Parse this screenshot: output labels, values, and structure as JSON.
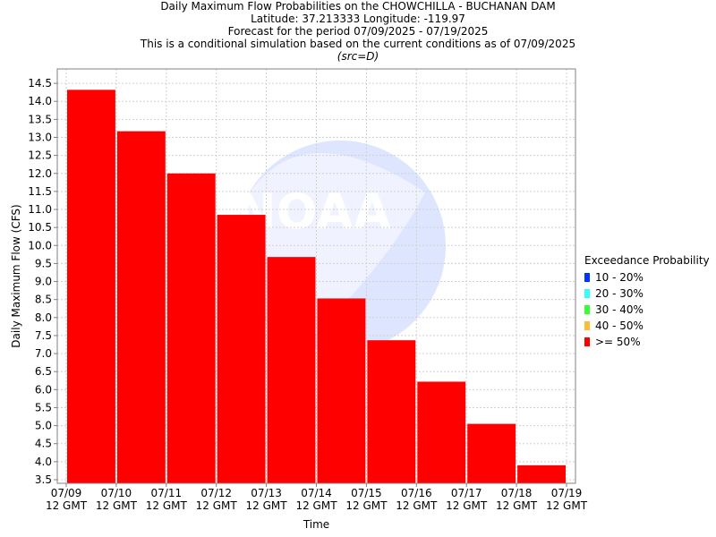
{
  "title_lines": [
    "Daily Maximum Flow Probabilities on the CHOWCHILLA - BUCHANAN DAM",
    "Latitude: 37.213333 Longitude: -119.97",
    "Forecast for the period 07/09/2025 - 07/19/2025",
    "This is a conditional simulation based on the current conditions as of 07/09/2025",
    "(src=D)"
  ],
  "watermark": "NOAA",
  "chart_data": {
    "type": "bar",
    "xlabel": "Time",
    "ylabel": "Daily Maximum Flow (CFS)",
    "ylim": [
      3.4,
      14.9
    ],
    "yticks": [
      3.5,
      4.0,
      4.5,
      5.0,
      5.5,
      6.0,
      6.5,
      7.0,
      7.5,
      8.0,
      8.5,
      9.0,
      9.5,
      10.0,
      10.5,
      11.0,
      11.5,
      12.0,
      12.5,
      13.0,
      13.5,
      14.0,
      14.5
    ],
    "ytick_labels": [
      "3.5",
      "4.0",
      "4.5",
      "5.0",
      "5.5",
      "6.0",
      "6.5",
      "7.0",
      "7.5",
      "8.0",
      "8.5",
      "9.0",
      "9.5",
      "10.0",
      "10.5",
      "11.0",
      "11.5",
      "12.0",
      "12.5",
      "13.0",
      "13.5",
      "14.0",
      "14.5"
    ],
    "x_ticks": [
      {
        "date": "07/09",
        "time": "12 GMT"
      },
      {
        "date": "07/10",
        "time": "12 GMT"
      },
      {
        "date": "07/11",
        "time": "12 GMT"
      },
      {
        "date": "07/12",
        "time": "12 GMT"
      },
      {
        "date": "07/13",
        "time": "12 GMT"
      },
      {
        "date": "07/14",
        "time": "12 GMT"
      },
      {
        "date": "07/15",
        "time": "12 GMT"
      },
      {
        "date": "07/16",
        "time": "12 GMT"
      },
      {
        "date": "07/17",
        "time": "12 GMT"
      },
      {
        "date": "07/18",
        "time": "12 GMT"
      },
      {
        "date": "07/19",
        "time": "12 GMT"
      }
    ],
    "series": [
      {
        "name": ">= 50%",
        "color": "#ff0000",
        "bars": [
          {
            "start": "07/09",
            "end": "07/10",
            "value": 14.32
          },
          {
            "start": "07/10",
            "end": "07/11",
            "value": 13.17
          },
          {
            "start": "07/11",
            "end": "07/12",
            "value": 12.0
          },
          {
            "start": "07/12",
            "end": "07/13",
            "value": 10.85
          },
          {
            "start": "07/13",
            "end": "07/14",
            "value": 9.68
          },
          {
            "start": "07/14",
            "end": "07/15",
            "value": 8.53
          },
          {
            "start": "07/15",
            "end": "07/16",
            "value": 7.37
          },
          {
            "start": "07/16",
            "end": "07/17",
            "value": 6.22
          },
          {
            "start": "07/17",
            "end": "07/18",
            "value": 5.05
          },
          {
            "start": "07/18",
            "end": "07/19",
            "value": 3.9
          }
        ]
      }
    ],
    "legend": {
      "title": "Exceedance Probability",
      "placement": "right",
      "items": [
        {
          "label": "10 - 20%",
          "color": "#0033ff"
        },
        {
          "label": "20 - 30%",
          "color": "#33ffff"
        },
        {
          "label": "30 - 40%",
          "color": "#33ff33"
        },
        {
          "label": "40 - 50%",
          "color": "#ffbb33"
        },
        {
          "label": ">= 50%",
          "color": "#ff0000"
        }
      ]
    },
    "grid": true
  }
}
